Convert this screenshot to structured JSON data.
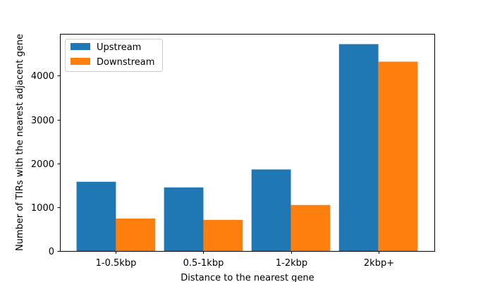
{
  "chart_data": {
    "type": "bar",
    "title": "",
    "xlabel": "Distance to the nearest gene",
    "ylabel": "Number of TIRs with the nearest adjacent gene",
    "categories": [
      "1-0.5kbp",
      "0.5-1kbp",
      "1-2kbp",
      "2kbp+"
    ],
    "series": [
      {
        "name": "Upstream",
        "color": "#1f77b4",
        "values": [
          1580,
          1450,
          1860,
          4720
        ]
      },
      {
        "name": "Downstream",
        "color": "#ff7f0e",
        "values": [
          740,
          710,
          1050,
          4320
        ]
      }
    ],
    "ylim": [
      0,
      4955
    ],
    "yticks": [
      0,
      1000,
      2000,
      3000,
      4000
    ],
    "grid": false,
    "legend_position": "top-left"
  }
}
